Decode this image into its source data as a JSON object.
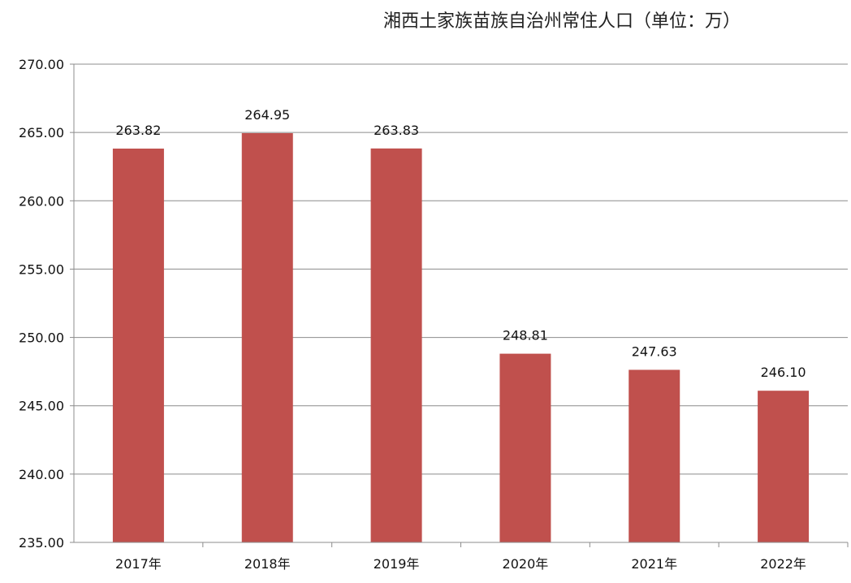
{
  "chart_data": {
    "type": "bar",
    "title": "湘西土家族苗族自治州常住人口（单位：万）",
    "xlabel": "",
    "ylabel": "",
    "categories": [
      "2017年",
      "2018年",
      "2019年",
      "2020年",
      "2021年",
      "2022年"
    ],
    "values": [
      263.82,
      264.95,
      263.83,
      248.81,
      247.63,
      246.1
    ],
    "data_labels": [
      "263.82",
      "264.95",
      "263.83",
      "248.81",
      "247.63",
      "246.10"
    ],
    "ylim": [
      235,
      270
    ],
    "yticks": [
      235,
      240,
      245,
      250,
      255,
      260,
      265,
      270
    ],
    "ytick_labels": [
      "235.00",
      "240.00",
      "245.00",
      "250.00",
      "255.00",
      "260.00",
      "265.00",
      "270.00"
    ],
    "grid": true,
    "legend": "none",
    "bar_color": "#c0504d",
    "grid_color": "#8c8c8c",
    "axis_color": "#8c8c8c"
  }
}
